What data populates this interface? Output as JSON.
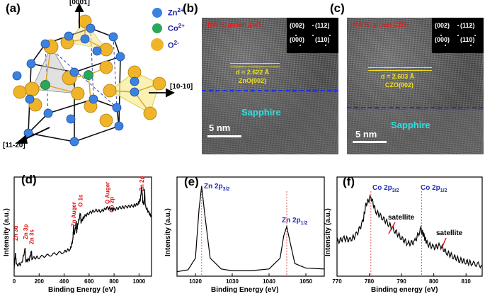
{
  "panels": {
    "a": {
      "label": "(a)",
      "axis_top": "[0001]",
      "axis_right": "[10-10]",
      "axis_left": "[11-20]",
      "legend": [
        {
          "ion": "Zn",
          "charge": "2+",
          "color": "#3b82e0"
        },
        {
          "ion": "Co",
          "charge": "2+",
          "color": "#27a85a"
        },
        {
          "ion": "O",
          "charge": "2-",
          "color": "#f0b428"
        }
      ]
    },
    "b": {
      "label": "(b)",
      "title": "400 °C grown ZnO",
      "d_spacing": "d = 2.622 Å",
      "plane": "ZnO(002)",
      "substrate": "Sapphire",
      "scale": "5 nm",
      "saed": [
        "(002)",
        "(112)",
        "(000)",
        "(110)"
      ]
    },
    "c": {
      "label": "(c)",
      "title": "400 °C grown CZO",
      "d_spacing": "d = 2.603 Å",
      "plane": "CZO(002)",
      "substrate": "Sapphire",
      "scale": "5 nm",
      "saed": [
        "(002)",
        "(112)",
        "(000)",
        "(110)"
      ]
    }
  },
  "chart_data": [
    {
      "id": "d",
      "label": "(d)",
      "type": "line",
      "xlabel": "Binding Energy (eV)",
      "ylabel": "Intensity (a.u.)",
      "xlim": [
        0,
        1100
      ],
      "xticks": [
        0,
        200,
        400,
        600,
        800,
        1000
      ],
      "annotations": [
        "Zn 3d",
        "Zn 3p",
        "Zn 3s",
        "Zn Auger",
        "O 1s",
        "O Auger",
        "Co 2p",
        "Zn 2p"
      ],
      "annotation_x": [
        10,
        90,
        140,
        475,
        531,
        745,
        780,
        1022
      ],
      "x": [
        0,
        10,
        20,
        60,
        88,
        92,
        120,
        139,
        142,
        200,
        300,
        400,
        450,
        470,
        475,
        480,
        498,
        500,
        510,
        531,
        535,
        560,
        600,
        650,
        700,
        745,
        780,
        800,
        850,
        900,
        950,
        990,
        1010,
        1022,
        1030,
        1040,
        1045,
        1050,
        1080,
        1100
      ],
      "y": [
        8,
        25,
        12,
        14,
        30,
        17,
        18,
        28,
        20,
        21,
        24,
        27,
        30,
        40,
        55,
        45,
        60,
        48,
        58,
        70,
        60,
        66,
        70,
        73,
        72,
        76,
        74,
        74,
        76,
        77,
        78,
        80,
        85,
        100,
        82,
        80,
        96,
        78,
        70,
        66
      ]
    },
    {
      "id": "e",
      "label": "(e)",
      "type": "line",
      "xlabel": "Binding Energy (eV)",
      "ylabel": "Intensity (a.u.)",
      "xlim": [
        1015,
        1055
      ],
      "xticks": [
        1020,
        1030,
        1040,
        1050
      ],
      "peaks": [
        {
          "name": "Zn 2p",
          "sub": "3/2",
          "x": 1021.7
        },
        {
          "name": "Zn 2p",
          "sub": "1/2",
          "x": 1044.8
        }
      ],
      "x": [
        1015,
        1018,
        1020,
        1021,
        1021.7,
        1022.5,
        1024,
        1027,
        1030,
        1035,
        1040,
        1043,
        1044,
        1044.8,
        1045.6,
        1047,
        1050,
        1055
      ],
      "y": [
        5,
        7,
        20,
        75,
        100,
        70,
        20,
        8,
        6,
        6,
        8,
        20,
        45,
        55,
        40,
        14,
        9,
        8
      ]
    },
    {
      "id": "f",
      "label": "(f)",
      "type": "line",
      "xlabel": "Binding energy (eV)",
      "ylabel": "Intensity (a.u.)",
      "xlim": [
        770,
        815
      ],
      "xticks": [
        770,
        780,
        790,
        800,
        810
      ],
      "peaks": [
        {
          "name": "Co 2p",
          "sub": "3/2",
          "x": 780.5
        },
        {
          "name": "Co 2p",
          "sub": "1/2",
          "x": 796.2
        }
      ],
      "annotations": [
        "satellite",
        "satellite"
      ],
      "annotation_x": [
        786,
        802.5
      ],
      "x": [
        770,
        772,
        774,
        776,
        778,
        779,
        780.5,
        782,
        784,
        786,
        788,
        790,
        792,
        794,
        796,
        797,
        798,
        800,
        802,
        804,
        806,
        808,
        810,
        812,
        815
      ],
      "y": [
        38,
        42,
        40,
        46,
        60,
        80,
        88,
        72,
        65,
        58,
        50,
        42,
        36,
        38,
        52,
        44,
        36,
        32,
        34,
        26,
        22,
        18,
        16,
        14,
        12
      ]
    }
  ]
}
